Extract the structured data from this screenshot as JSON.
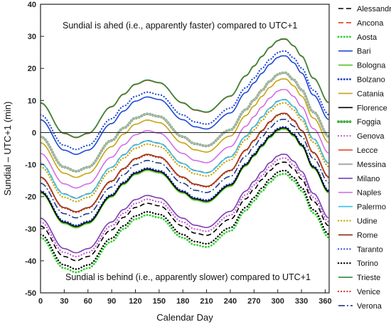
{
  "chart_data": {
    "type": "line",
    "xlabel": "Calendar Day",
    "ylabel": "Sundial – UTC+1 (min)",
    "xlim": [
      0,
      365
    ],
    "ylim": [
      -50,
      40
    ],
    "x_ticks": [
      "0",
      "30",
      "60",
      "90",
      "120",
      "150",
      "180",
      "210",
      "240",
      "270",
      "300",
      "330",
      "360"
    ],
    "y_ticks": [
      "40",
      "30",
      "20",
      "10",
      "0",
      "-10",
      "-20",
      "-30",
      "-40",
      "-50"
    ],
    "grid": false,
    "legend_position": "right",
    "annotations": {
      "top": "Sundial is ahed (i.e., apparently faster) compared to UTC+1",
      "bottom": "Sundial is behind (i.e., apparently slower) compared to UTC+1"
    },
    "equation_of_time": {
      "x": [
        0,
        30,
        45,
        60,
        90,
        105,
        120,
        135,
        150,
        180,
        195,
        210,
        240,
        260,
        270,
        280,
        290,
        300,
        305,
        310,
        320,
        330,
        345,
        365
      ],
      "values": [
        -3.5,
        -13.0,
        -14.3,
        -13.0,
        -4.7,
        -0.8,
        2.3,
        3.6,
        2.8,
        -3.5,
        -5.7,
        -6.4,
        -1.4,
        5.0,
        8.0,
        11.0,
        13.8,
        15.9,
        16.4,
        16.4,
        14.3,
        11.1,
        4.2,
        -3.5
      ]
    },
    "series": [
      {
        "name": "Alessandria",
        "offset": -25.65,
        "color": "#000000",
        "style": "dashed",
        "width": 1.6
      },
      {
        "name": "Ancona",
        "offset": -6.1,
        "color": "#e23c1e",
        "style": "dashed",
        "width": 1.6
      },
      {
        "name": "Aosta",
        "offset": -29.3,
        "color": "#2fd02f",
        "style": "dotted",
        "width": 2.8
      },
      {
        "name": "Bari",
        "offset": 7.5,
        "color": "#1e48d6",
        "style": "solid",
        "width": 1.6
      },
      {
        "name": "Bologna",
        "offset": -15.4,
        "color": "#4fc61e",
        "style": "solid",
        "width": 1.6
      },
      {
        "name": "Bolzano",
        "offset": -14.7,
        "color": "#1e3ec2",
        "style": "dotted",
        "width": 2.8
      },
      {
        "name": "Catania",
        "offset": 0.3,
        "color": "#c9a20e",
        "style": "solid",
        "width": 1.6
      },
      {
        "name": "Florence",
        "offset": -15.0,
        "color": "#000000",
        "style": "solid",
        "width": 1.6
      },
      {
        "name": "Foggia",
        "offset": 2.2,
        "color": "#46ab46",
        "style": "dotted",
        "width": 3.8
      },
      {
        "name": "Genova",
        "offset": -24.4,
        "color": "#c25ad0",
        "style": "dotted",
        "width": 2.2
      },
      {
        "name": "Lecce",
        "offset": 12.7,
        "color": "#e23c1e",
        "style": "solid",
        "width": 1.6
      },
      {
        "name": "Messina",
        "offset": 2.2,
        "color": "#b3b3b3",
        "style": "solid",
        "width": 2.4
      },
      {
        "name": "Milano",
        "offset": -23.2,
        "color": "#7b3fb0",
        "style": "solid",
        "width": 1.6
      },
      {
        "name": "Naples",
        "offset": -3.0,
        "color": "#d36ee6",
        "style": "solid",
        "width": 1.6
      },
      {
        "name": "Palermo",
        "offset": -6.2,
        "color": "#2fc5f0",
        "style": "solid",
        "width": 1.6
      },
      {
        "name": "Udine",
        "offset": -7.2,
        "color": "#d1a50f",
        "style": "dotted",
        "width": 2.4
      },
      {
        "name": "Rome",
        "offset": -10.4,
        "color": "#8b2a10",
        "style": "solid",
        "width": 1.6
      },
      {
        "name": "Taranto",
        "offset": 9.0,
        "color": "#1e48d6",
        "style": "dotted",
        "width": 2.2
      },
      {
        "name": "Torino",
        "offset": -28.3,
        "color": "#000000",
        "style": "dotted",
        "width": 2.4
      },
      {
        "name": "Trieste",
        "offset": 12.8,
        "color": "#2e8b3a",
        "style": "solid",
        "width": 1.6
      },
      {
        "name": "Venice",
        "offset": -10.6,
        "color": "#c43a1c",
        "style": "dotted",
        "width": 2.2
      },
      {
        "name": "Verona",
        "offset": -12.3,
        "color": "#1f3c88",
        "style": "dashdot",
        "width": 1.6
      }
    ]
  }
}
